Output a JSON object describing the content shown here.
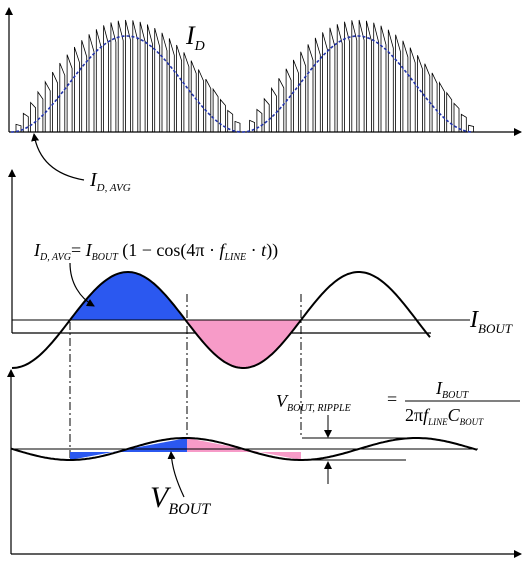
{
  "labels": {
    "i_d_main": "I",
    "i_d_sub": "D",
    "i_davg_main": "I",
    "i_davg_sub": "D, AVG",
    "eq_lhs_main": "I",
    "eq_lhs_sub": "D, AVG",
    "eq_eq1": "= ",
    "eq_ibout_main": "I",
    "eq_ibout_sub": "BOUT",
    "eq_rest1": " (1 − cos(4π · ",
    "eq_f": "f",
    "eq_fsub": "LINE",
    "eq_rest2": " · ",
    "eq_t": "t",
    "eq_rest3": "))",
    "ibout_main": "I",
    "ibout_sub": "BOUT",
    "vr_main": "V",
    "vr_sub": "BOUT, RIPPLE",
    "vr_eq": "=",
    "vr_num_main": "I",
    "vr_num_sub": "BOUT",
    "vr_den_2pi": "2π",
    "vr_den_f": "f",
    "vr_den_fsub": "LINE",
    "vr_den_c": "C",
    "vr_den_csub": "BOUT",
    "vbout_main": "V",
    "vbout_sub": "BOUT"
  },
  "colors": {
    "positive_fill": "#2b58f0",
    "negative_fill": "#f79bc8",
    "avg_curve": "#2233aa",
    "line": "#000000"
  }
}
